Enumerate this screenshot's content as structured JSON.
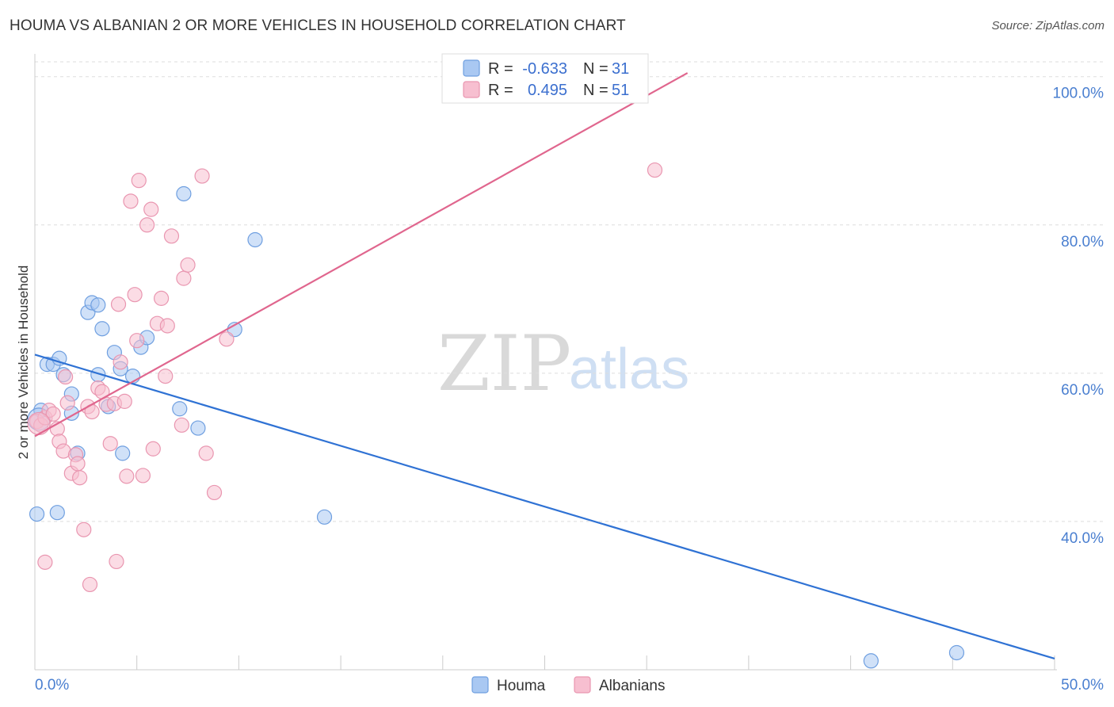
{
  "header": {
    "title": "HOUMA VS ALBANIAN 2 OR MORE VEHICLES IN HOUSEHOLD CORRELATION CHART",
    "source": "Source: ZipAtlas.com"
  },
  "legend": {
    "rows": [
      {
        "r_label": "R =",
        "r_value": "-0.633",
        "n_label": "N =",
        "n_value": "31"
      },
      {
        "r_label": "R =",
        "r_value": "0.495",
        "n_label": "N =",
        "n_value": "51"
      }
    ]
  },
  "watermark": {
    "zip": "ZIP",
    "atlas": "atlas"
  },
  "colors": {
    "houma_fill": "#a9c8f2",
    "houma_stroke": "#6f9fe0",
    "houma_line": "#2f72d4",
    "albanian_fill": "#f7bfd0",
    "albanian_stroke": "#e996b0",
    "albanian_line": "#e0668e",
    "grid": "#dddddd",
    "axis_tick_text": "#4a7fd0"
  },
  "chart_data": {
    "type": "scatter",
    "title": "HOUMA VS ALBANIAN 2 OR MORE VEHICLES IN HOUSEHOLD CORRELATION CHART",
    "xlabel": "",
    "ylabel": "2 or more Vehicles in Household",
    "xlim": [
      0,
      50
    ],
    "ylim": [
      20,
      102
    ],
    "x_tick_labels": [
      "0.0%",
      "50.0%"
    ],
    "y_ticks": [
      40,
      60,
      80,
      100
    ],
    "y_tick_labels": [
      "40.0%",
      "60.0%",
      "80.0%",
      "100.0%"
    ],
    "grid": true,
    "legend_position": "bottom-center",
    "series": [
      {
        "name": "Houma",
        "r": -0.633,
        "n": 31,
        "trend": {
          "x0": 0,
          "y0": 62.5,
          "x1": 50,
          "y1": 21.5
        },
        "points": [
          {
            "x": 0.1,
            "y": 41.0
          },
          {
            "x": 0.3,
            "y": 55.0
          },
          {
            "x": 0.6,
            "y": 61.2
          },
          {
            "x": 0.9,
            "y": 61.2
          },
          {
            "x": 1.2,
            "y": 62.0
          },
          {
            "x": 1.4,
            "y": 59.8
          },
          {
            "x": 1.8,
            "y": 57.2
          },
          {
            "x": 1.8,
            "y": 54.6
          },
          {
            "x": 2.1,
            "y": 49.2
          },
          {
            "x": 1.1,
            "y": 41.2
          },
          {
            "x": 2.6,
            "y": 68.2
          },
          {
            "x": 2.8,
            "y": 69.5
          },
          {
            "x": 3.1,
            "y": 69.2
          },
          {
            "x": 3.3,
            "y": 66.0
          },
          {
            "x": 3.1,
            "y": 59.8
          },
          {
            "x": 3.6,
            "y": 55.5
          },
          {
            "x": 3.9,
            "y": 62.8
          },
          {
            "x": 4.2,
            "y": 60.6
          },
          {
            "x": 4.8,
            "y": 59.6
          },
          {
            "x": 4.3,
            "y": 49.2
          },
          {
            "x": 5.2,
            "y": 63.5
          },
          {
            "x": 5.5,
            "y": 64.8
          },
          {
            "x": 7.1,
            "y": 55.2
          },
          {
            "x": 7.3,
            "y": 84.2
          },
          {
            "x": 8.0,
            "y": 52.6
          },
          {
            "x": 9.8,
            "y": 65.9
          },
          {
            "x": 10.8,
            "y": 78.0
          },
          {
            "x": 14.2,
            "y": 40.6
          },
          {
            "x": 41.0,
            "y": 21.2
          },
          {
            "x": 45.2,
            "y": 22.3
          },
          {
            "x": 0.2,
            "y": 53.8
          }
        ]
      },
      {
        "name": "Albanians",
        "r": 0.495,
        "n": 51,
        "trend": {
          "x0": 0,
          "y0": 51.5,
          "x1": 32,
          "y1": 100.5
        },
        "points": [
          {
            "x": 0.1,
            "y": 53.5
          },
          {
            "x": 0.3,
            "y": 53.0
          },
          {
            "x": 0.5,
            "y": 54.0
          },
          {
            "x": 0.5,
            "y": 34.5
          },
          {
            "x": 0.7,
            "y": 55.0
          },
          {
            "x": 0.9,
            "y": 54.5
          },
          {
            "x": 1.1,
            "y": 52.5
          },
          {
            "x": 1.2,
            "y": 50.8
          },
          {
            "x": 1.4,
            "y": 49.5
          },
          {
            "x": 1.5,
            "y": 59.5
          },
          {
            "x": 1.6,
            "y": 56.0
          },
          {
            "x": 1.8,
            "y": 46.5
          },
          {
            "x": 2.0,
            "y": 49.0
          },
          {
            "x": 2.1,
            "y": 47.8
          },
          {
            "x": 2.2,
            "y": 45.9
          },
          {
            "x": 2.4,
            "y": 38.9
          },
          {
            "x": 2.6,
            "y": 55.5
          },
          {
            "x": 2.7,
            "y": 31.5
          },
          {
            "x": 2.8,
            "y": 54.8
          },
          {
            "x": 3.1,
            "y": 58.0
          },
          {
            "x": 3.3,
            "y": 57.5
          },
          {
            "x": 3.5,
            "y": 55.8
          },
          {
            "x": 3.7,
            "y": 50.5
          },
          {
            "x": 3.9,
            "y": 55.9
          },
          {
            "x": 4.0,
            "y": 34.6
          },
          {
            "x": 4.1,
            "y": 69.3
          },
          {
            "x": 4.2,
            "y": 61.5
          },
          {
            "x": 4.4,
            "y": 56.2
          },
          {
            "x": 4.5,
            "y": 46.1
          },
          {
            "x": 4.7,
            "y": 83.2
          },
          {
            "x": 4.9,
            "y": 70.6
          },
          {
            "x": 5.0,
            "y": 64.4
          },
          {
            "x": 5.1,
            "y": 86.0
          },
          {
            "x": 5.3,
            "y": 46.2
          },
          {
            "x": 5.5,
            "y": 80.0
          },
          {
            "x": 5.7,
            "y": 82.1
          },
          {
            "x": 5.8,
            "y": 49.8
          },
          {
            "x": 6.0,
            "y": 66.7
          },
          {
            "x": 6.2,
            "y": 70.1
          },
          {
            "x": 6.4,
            "y": 59.6
          },
          {
            "x": 6.5,
            "y": 66.4
          },
          {
            "x": 6.7,
            "y": 78.5
          },
          {
            "x": 7.2,
            "y": 53.0
          },
          {
            "x": 7.3,
            "y": 72.8
          },
          {
            "x": 7.5,
            "y": 74.6
          },
          {
            "x": 8.2,
            "y": 86.6
          },
          {
            "x": 8.4,
            "y": 49.2
          },
          {
            "x": 8.8,
            "y": 43.9
          },
          {
            "x": 9.4,
            "y": 64.6
          },
          {
            "x": 30.4,
            "y": 87.4
          },
          {
            "x": 0.2,
            "y": 53.2
          }
        ]
      }
    ]
  }
}
